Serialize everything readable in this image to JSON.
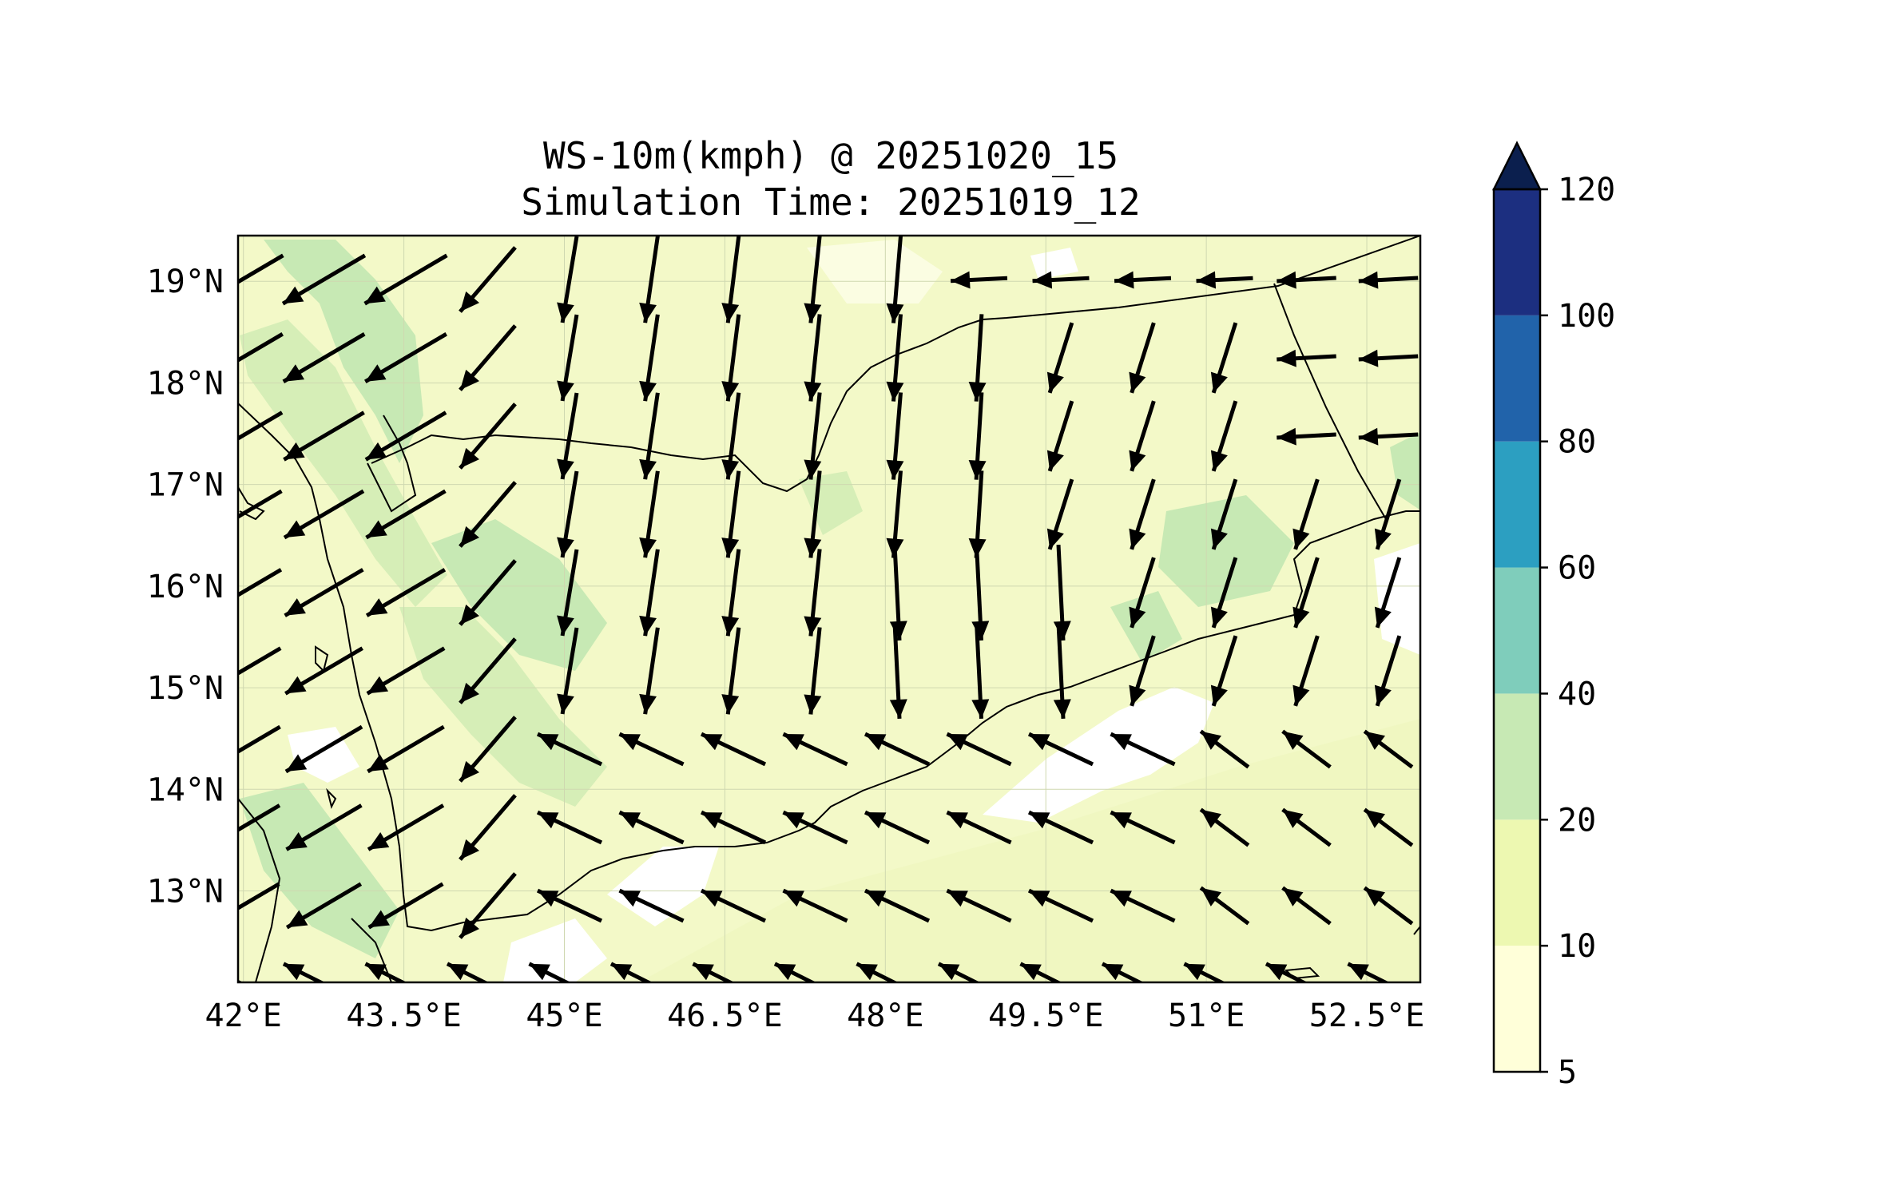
{
  "title": {
    "line1": "WS-10m(kmph) @ 20251020_15",
    "line2": "Simulation Time: 20251019_12"
  },
  "map": {
    "x_ticks": [
      "42°E",
      "43.5°E",
      "45°E",
      "46.5°E",
      "48°E",
      "49.5°E",
      "51°E",
      "52.5°E"
    ],
    "x_tick_values": [
      42,
      43.5,
      45,
      46.5,
      48,
      49.5,
      51,
      52.5
    ],
    "y_ticks": [
      "19°N",
      "18°N",
      "17°N",
      "16°N",
      "15°N",
      "14°N",
      "13°N"
    ],
    "y_tick_values": [
      19,
      18,
      17,
      16,
      15,
      14,
      13
    ],
    "lon_range": [
      41.95,
      53.0
    ],
    "lat_range": [
      12.1,
      19.45
    ],
    "grid": true,
    "land_color": "#f1f8c6",
    "wind_vectors": "black quiver arrows, predominantly southward over the interior and north-westward over the Gulf of Aden"
  },
  "colorbar": {
    "levels": [
      "5",
      "10",
      "20",
      "40",
      "60",
      "80",
      "100",
      "120"
    ],
    "colors": [
      "#ffffd9",
      "#edf8b1",
      "#c7e9b4",
      "#7fcdbb",
      "#2c9fc1",
      "#2163aa",
      "#1c2f80",
      "#0b1f4e"
    ],
    "extend": "max"
  }
}
